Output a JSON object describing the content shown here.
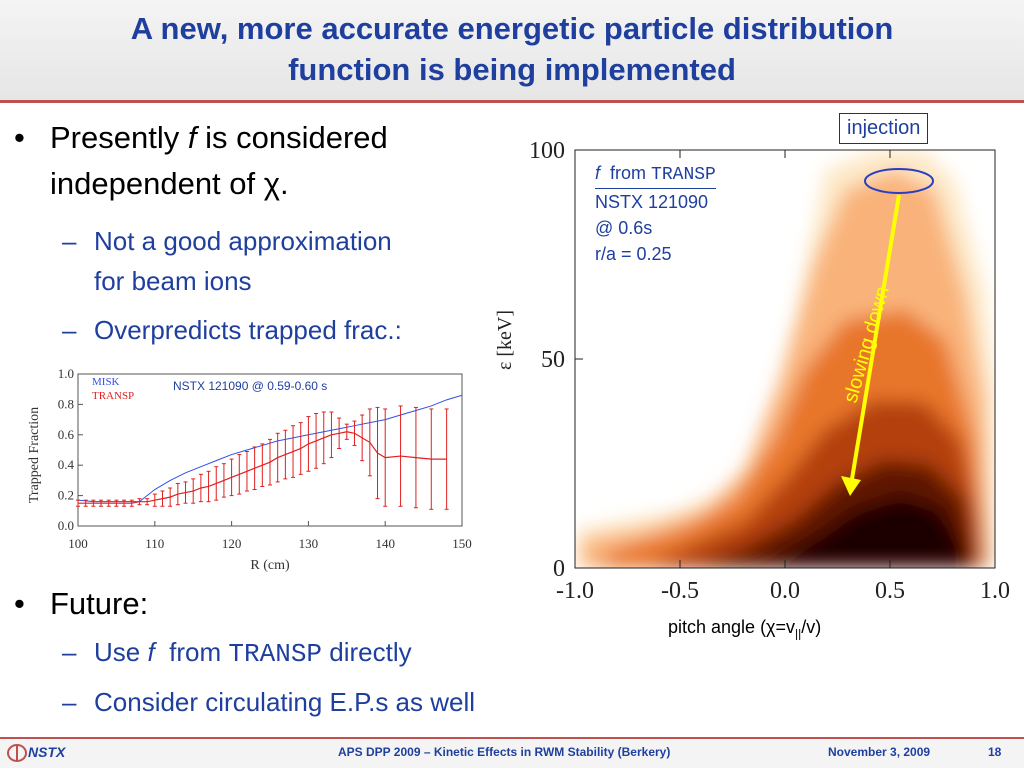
{
  "slide": {
    "title_line1": "A new, more accurate energetic particle distribution",
    "title_line2": "function is being implemented",
    "bullets": {
      "b1_pre": "Presently",
      "b1_f": "f",
      "b1_post": "is considered",
      "b1_line2": "independent of χ.",
      "sub1_line1": "Not a good approximation",
      "sub1_line2": "for beam ions",
      "sub2": "Overpredicts trapped frac.:",
      "b2": "Future:",
      "sub3_pre": "Use",
      "sub3_f": "f",
      "sub3_from": "from",
      "sub3_transp": "TRANSP",
      "sub3_post": "directly",
      "sub4": "Consider circulating E.P.s as well",
      "dash": "–",
      "bullet": "•"
    }
  },
  "footer": {
    "logo": "NSTX",
    "center": "APS DPP 2009 – Kinetic Effects in RWM Stability (Berkery)",
    "date": "November 3, 2009",
    "page": "18"
  },
  "colors": {
    "title": "#1f3f9f",
    "accent": "#c0504d",
    "misk": "#3050e8",
    "transp": "#e02020",
    "arrow": "#ffff00"
  },
  "annotations": {
    "injection": "injection",
    "slowing_down": "slowing down",
    "f_label": "f",
    "from_label": "from",
    "transp_label": "TRANSP",
    "shot": "NSTX 121090",
    "time": "@ 0.6s",
    "radius": "r/a = 0.25",
    "pitch_axis_pre": "pitch angle (χ=v",
    "pitch_axis_sub": "||",
    "pitch_axis_post": "/v)"
  },
  "chart_data": [
    {
      "type": "line",
      "title": "NSTX 121090 @ 0.59-0.60 s",
      "xlabel": "R (cm)",
      "ylabel": "Trapped Fraction",
      "xlim": [
        100,
        150
      ],
      "ylim": [
        0,
        1.0
      ],
      "x_ticks": [
        "100",
        "110",
        "120",
        "130",
        "140",
        "150"
      ],
      "y_ticks": [
        "0.0",
        "0.2",
        "0.4",
        "0.6",
        "0.8",
        "1.0"
      ],
      "series": [
        {
          "name": "MISK",
          "x": [
            100,
            102,
            104,
            106,
            108,
            110,
            112,
            114,
            116,
            118,
            120,
            122,
            124,
            126,
            128,
            130,
            132,
            134,
            136,
            138,
            140,
            142,
            144,
            146,
            148,
            150
          ],
          "values": [
            0.17,
            0.16,
            0.16,
            0.16,
            0.16,
            0.24,
            0.3,
            0.35,
            0.39,
            0.43,
            0.47,
            0.5,
            0.53,
            0.56,
            0.58,
            0.6,
            0.62,
            0.64,
            0.66,
            0.68,
            0.7,
            0.73,
            0.76,
            0.79,
            0.83,
            0.86
          ]
        },
        {
          "name": "TRANSP",
          "x": [
            100,
            101,
            102,
            103,
            104,
            105,
            106,
            107,
            108,
            109,
            110,
            111,
            112,
            113,
            114,
            115,
            116,
            117,
            118,
            119,
            120,
            121,
            122,
            123,
            124,
            125,
            126,
            127,
            128,
            129,
            130,
            131,
            132,
            133,
            134,
            135,
            136,
            137,
            138,
            139,
            140,
            142,
            144,
            146,
            148
          ],
          "values": [
            0.15,
            0.15,
            0.15,
            0.15,
            0.15,
            0.15,
            0.15,
            0.15,
            0.16,
            0.16,
            0.17,
            0.18,
            0.19,
            0.21,
            0.22,
            0.23,
            0.25,
            0.26,
            0.28,
            0.3,
            0.32,
            0.34,
            0.36,
            0.38,
            0.4,
            0.42,
            0.45,
            0.47,
            0.49,
            0.51,
            0.54,
            0.56,
            0.58,
            0.6,
            0.61,
            0.62,
            0.61,
            0.58,
            0.55,
            0.48,
            0.45,
            0.46,
            0.45,
            0.44,
            0.44
          ],
          "error": [
            0.02,
            0.02,
            0.02,
            0.02,
            0.02,
            0.02,
            0.02,
            0.02,
            0.02,
            0.02,
            0.04,
            0.05,
            0.06,
            0.07,
            0.07,
            0.08,
            0.09,
            0.1,
            0.11,
            0.11,
            0.12,
            0.13,
            0.13,
            0.14,
            0.14,
            0.15,
            0.16,
            0.16,
            0.17,
            0.17,
            0.18,
            0.18,
            0.17,
            0.15,
            0.1,
            0.05,
            0.08,
            0.15,
            0.22,
            0.3,
            0.32,
            0.33,
            0.33,
            0.33,
            0.33
          ]
        }
      ]
    },
    {
      "type": "heatmap",
      "title": "",
      "xlabel": "pitch angle (χ=v||/v)",
      "ylabel": "ε [keV]",
      "xlim": [
        -1.0,
        1.0
      ],
      "ylim": [
        0,
        100
      ],
      "x_ticks": [
        "-1.0",
        "-0.5",
        "0.0",
        "0.5",
        "1.0"
      ],
      "y_ticks": [
        "0",
        "50",
        "100"
      ],
      "peak": {
        "pitch": 0.5,
        "energy_keV": 22
      },
      "injection_energy_keV": 92
    }
  ]
}
